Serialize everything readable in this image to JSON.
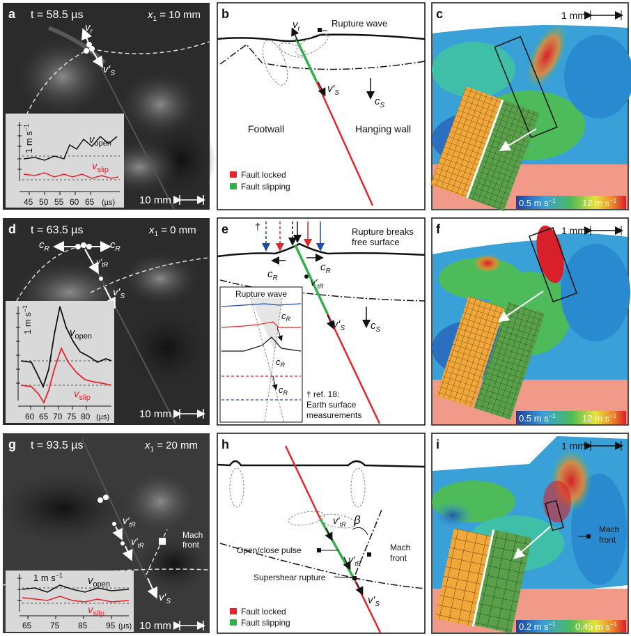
{
  "panels": {
    "a": {
      "letter": "a",
      "time": "t = 58.5 µs",
      "pos": "x",
      "pos_sub": "1",
      "pos_val": " = 10 mm",
      "scale": "10 mm",
      "vr": "v",
      "vr_sub": "r",
      "vs": "v′",
      "vs_sub": "S",
      "unit": "1 m s",
      "unit_exp": "−1",
      "open": "v",
      "open_sub": "open",
      "slip": "v",
      "slip_sub": "slip",
      "ticks": [
        "45",
        "50",
        "55",
        "60",
        "65"
      ],
      "tick_unit": "(µs)"
    },
    "b": {
      "letter": "b",
      "vr": "v",
      "vr_sub": "r",
      "rupture_wave": "Rupture wave",
      "vs": "v′",
      "vs_sub": "S",
      "cs": "c",
      "cs_sub": "S",
      "footwall": "Footwall",
      "hanging": "Hanging wall",
      "locked": "Fault locked",
      "slipping": "Fault slipping"
    },
    "c": {
      "letter": "c",
      "scale": "1 mm",
      "cmin": "0.5 m s",
      "cmin_exp": "−1",
      "cmax": "12 m s",
      "cmax_exp": "−1"
    },
    "d": {
      "letter": "d",
      "time": "t = 63.5 µs",
      "pos": "x",
      "pos_sub": "1",
      "pos_val": " = 0 mm",
      "scale": "10 mm",
      "cR": "c",
      "cR_sub": "R",
      "vtR": "v′",
      "vtR_sub": "tR",
      "vs": "v′",
      "vs_sub": "S",
      "unit": "1 m s",
      "unit_exp": "−1",
      "open": "v",
      "open_sub": "open",
      "slip": "v",
      "slip_sub": "slip",
      "ticks": [
        "60",
        "65",
        "70",
        "75",
        "80"
      ],
      "tick_unit": "(µs)"
    },
    "e": {
      "letter": "e",
      "dagger": "†",
      "breaks1": "Rupture breaks",
      "breaks2": "free surface",
      "cR": "c",
      "cR_sub": "R",
      "vtR": "v′",
      "vtR_sub": "tR",
      "vs": "v′",
      "vs_sub": "S",
      "cs": "c",
      "cs_sub": "S",
      "inset_title": "Rupture wave",
      "ref1": "† ref. 18:",
      "ref2": "Earth surface",
      "ref3": "measurements"
    },
    "f": {
      "letter": "f",
      "scale": "1 mm",
      "cmin": "0.5 m s",
      "cmin_exp": "−1",
      "cmax": "12 m s",
      "cmax_exp": "−1"
    },
    "g": {
      "letter": "g",
      "time": "t = 93.5 µs",
      "pos": "x",
      "pos_sub": "1",
      "pos_val": " = 20 mm",
      "scale": "10 mm",
      "vtR": "v′",
      "vtR_sub": "tR",
      "vs": "v′",
      "vs_sub": "S",
      "mach1": "Mach",
      "mach2": "front",
      "unit": "1 m s",
      "unit_exp": "−1",
      "open": "v",
      "open_sub": "open",
      "slip": "v",
      "slip_sub": "slip",
      "ticks": [
        "65",
        "75",
        "85",
        "95"
      ],
      "tick_unit": "(µs)"
    },
    "h": {
      "letter": "h",
      "vtR": "v′",
      "vtR_sub": "tR",
      "beta": "β",
      "pulse": "Open/close pulse",
      "mach1": "Mach",
      "mach2": "front",
      "super": "Supershear rupture",
      "vs": "v′",
      "vs_sub": "S",
      "locked": "Fault locked",
      "slipping": "Fault slipping"
    },
    "i": {
      "letter": "i",
      "scale": "1 mm",
      "mach1": "Mach",
      "mach2": "front",
      "cmin": "0.2 m s",
      "cmin_exp": "−1",
      "cmax": "0.45 m s",
      "cmax_exp": "−1"
    }
  },
  "colors": {
    "locked": "#e8242b",
    "slipping": "#2eb24b",
    "blue": "#1f4aa8",
    "salmon": "#f29a8a",
    "inset_bg": "#d9d9d9"
  }
}
